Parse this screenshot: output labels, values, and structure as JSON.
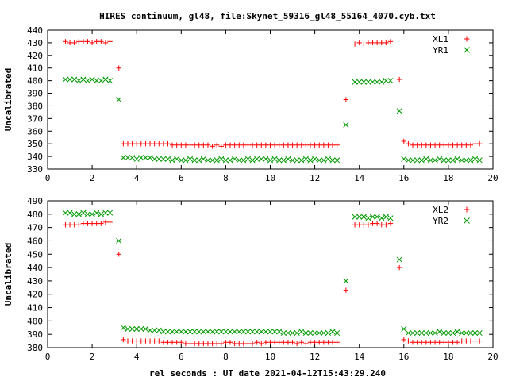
{
  "title": "HIRES continuum, gl48, file:Skynet_59316_gl48_55164_4070.cyb.txt",
  "xlabel": "rel seconds : UT date 2021-04-12T15:43:29.240",
  "colors": {
    "red": "#ff0000",
    "green": "#009900"
  },
  "chart_data": [
    {
      "type": "scatter",
      "ylabel": "Uncalibrated",
      "xlim": [
        0,
        20
      ],
      "ylim": [
        330,
        440
      ],
      "x_ticks": [
        0,
        2,
        4,
        6,
        8,
        10,
        12,
        14,
        16,
        18,
        20
      ],
      "y_ticks": [
        330,
        340,
        350,
        360,
        370,
        380,
        390,
        400,
        410,
        420,
        430,
        440
      ],
      "legend_position": "top-right",
      "series": [
        {
          "name": "XL1",
          "marker": "plus",
          "color": "#ff0000",
          "x": [
            0.8,
            1.0,
            1.2,
            1.4,
            1.6,
            1.8,
            2.0,
            2.2,
            2.4,
            2.6,
            2.8,
            3.2,
            3.4,
            3.6,
            3.8,
            4.0,
            4.2,
            4.4,
            4.6,
            4.8,
            5.0,
            5.2,
            5.4,
            5.6,
            5.8,
            6.0,
            6.2,
            6.4,
            6.6,
            6.8,
            7.0,
            7.2,
            7.4,
            7.6,
            7.8,
            8.0,
            8.2,
            8.4,
            8.6,
            8.8,
            9.0,
            9.2,
            9.4,
            9.6,
            9.8,
            10.0,
            10.2,
            10.4,
            10.6,
            10.8,
            11.0,
            11.2,
            11.4,
            11.6,
            11.8,
            12.0,
            12.2,
            12.4,
            12.6,
            12.8,
            13.0,
            13.4,
            13.8,
            14.0,
            14.2,
            14.4,
            14.6,
            14.8,
            15.0,
            15.2,
            15.4,
            15.8,
            16.0,
            16.2,
            16.4,
            16.6,
            16.8,
            17.0,
            17.2,
            17.4,
            17.6,
            17.8,
            18.0,
            18.2,
            18.4,
            18.6,
            18.8,
            19.0,
            19.2,
            19.4
          ],
          "y": [
            431,
            430,
            430,
            431,
            431,
            431,
            430,
            431,
            431,
            430,
            431,
            410,
            350,
            350,
            350,
            350,
            350,
            350,
            350,
            350,
            350,
            350,
            350,
            349,
            349,
            349,
            349,
            349,
            349,
            349,
            349,
            349,
            348,
            349,
            348,
            349,
            349,
            349,
            349,
            349,
            349,
            349,
            349,
            349,
            349,
            349,
            349,
            349,
            349,
            349,
            349,
            349,
            349,
            349,
            349,
            349,
            349,
            349,
            349,
            349,
            349,
            385,
            429,
            430,
            429,
            430,
            430,
            430,
            430,
            430,
            431,
            401,
            352,
            350,
            349,
            349,
            349,
            349,
            349,
            349,
            349,
            349,
            349,
            349,
            349,
            349,
            349,
            349,
            350,
            350
          ]
        },
        {
          "name": "YR1",
          "marker": "cross",
          "color": "#009900",
          "x": [
            0.8,
            1.0,
            1.2,
            1.4,
            1.6,
            1.8,
            2.0,
            2.2,
            2.4,
            2.6,
            2.8,
            3.2,
            3.4,
            3.6,
            3.8,
            4.0,
            4.2,
            4.4,
            4.6,
            4.8,
            5.0,
            5.2,
            5.4,
            5.6,
            5.8,
            6.0,
            6.2,
            6.4,
            6.6,
            6.8,
            7.0,
            7.2,
            7.4,
            7.6,
            7.8,
            8.0,
            8.2,
            8.4,
            8.6,
            8.8,
            9.0,
            9.2,
            9.4,
            9.6,
            9.8,
            10.0,
            10.2,
            10.4,
            10.6,
            10.8,
            11.0,
            11.2,
            11.4,
            11.6,
            11.8,
            12.0,
            12.2,
            12.4,
            12.6,
            12.8,
            13.0,
            13.4,
            13.8,
            14.0,
            14.2,
            14.4,
            14.6,
            14.8,
            15.0,
            15.2,
            15.4,
            15.8,
            16.0,
            16.2,
            16.4,
            16.6,
            16.8,
            17.0,
            17.2,
            17.4,
            17.6,
            17.8,
            18.0,
            18.2,
            18.4,
            18.6,
            18.8,
            19.0,
            19.2,
            19.4
          ],
          "y": [
            401,
            401,
            401,
            400,
            401,
            400,
            401,
            400,
            400,
            401,
            400,
            385,
            339,
            339,
            339,
            338,
            339,
            339,
            339,
            338,
            338,
            338,
            338,
            337,
            338,
            337,
            337,
            338,
            337,
            337,
            338,
            337,
            337,
            337,
            338,
            337,
            337,
            338,
            337,
            337,
            338,
            337,
            338,
            338,
            338,
            337,
            338,
            337,
            337,
            338,
            337,
            337,
            337,
            338,
            337,
            338,
            337,
            337,
            338,
            337,
            337,
            365,
            399,
            399,
            399,
            399,
            399,
            399,
            399,
            400,
            400,
            376,
            338,
            337,
            337,
            337,
            337,
            338,
            337,
            337,
            338,
            337,
            337,
            337,
            338,
            337,
            337,
            337,
            338,
            337
          ]
        }
      ]
    },
    {
      "type": "scatter",
      "ylabel": "Uncalibrated",
      "xlim": [
        0,
        20
      ],
      "ylim": [
        380,
        490
      ],
      "x_ticks": [
        0,
        2,
        4,
        6,
        8,
        10,
        12,
        14,
        16,
        18,
        20
      ],
      "y_ticks": [
        380,
        390,
        400,
        410,
        420,
        430,
        440,
        450,
        460,
        470,
        480,
        490
      ],
      "legend_position": "top-right",
      "series": [
        {
          "name": "XL2",
          "marker": "plus",
          "color": "#ff0000",
          "x": [
            0.8,
            1.0,
            1.2,
            1.4,
            1.6,
            1.8,
            2.0,
            2.2,
            2.4,
            2.6,
            2.8,
            3.2,
            3.4,
            3.6,
            3.8,
            4.0,
            4.2,
            4.4,
            4.6,
            4.8,
            5.0,
            5.2,
            5.4,
            5.6,
            5.8,
            6.0,
            6.2,
            6.4,
            6.6,
            6.8,
            7.0,
            7.2,
            7.4,
            7.6,
            7.8,
            8.0,
            8.2,
            8.4,
            8.6,
            8.8,
            9.0,
            9.2,
            9.4,
            9.6,
            9.8,
            10.0,
            10.2,
            10.4,
            10.6,
            10.8,
            11.0,
            11.2,
            11.4,
            11.6,
            11.8,
            12.0,
            12.2,
            12.4,
            12.6,
            12.8,
            13.0,
            13.4,
            13.8,
            14.0,
            14.2,
            14.4,
            14.6,
            14.8,
            15.0,
            15.2,
            15.4,
            15.8,
            16.0,
            16.2,
            16.4,
            16.6,
            16.8,
            17.0,
            17.2,
            17.4,
            17.6,
            17.8,
            18.0,
            18.2,
            18.4,
            18.6,
            18.8,
            19.0,
            19.2,
            19.4
          ],
          "y": [
            472,
            472,
            472,
            472,
            473,
            473,
            473,
            473,
            473,
            474,
            474,
            450,
            386,
            385,
            385,
            385,
            385,
            385,
            385,
            385,
            385,
            384,
            384,
            384,
            384,
            384,
            383,
            383,
            383,
            383,
            383,
            383,
            383,
            383,
            383,
            384,
            384,
            383,
            383,
            383,
            383,
            383,
            384,
            383,
            384,
            384,
            384,
            384,
            384,
            384,
            384,
            383,
            384,
            383,
            384,
            384,
            384,
            384,
            384,
            384,
            384,
            423,
            472,
            472,
            472,
            472,
            473,
            473,
            472,
            472,
            473,
            440,
            386,
            385,
            384,
            384,
            384,
            384,
            384,
            384,
            384,
            384,
            384,
            384,
            384,
            385,
            385,
            385,
            385,
            385
          ]
        },
        {
          "name": "YR2",
          "marker": "cross",
          "color": "#009900",
          "x": [
            0.8,
            1.0,
            1.2,
            1.4,
            1.6,
            1.8,
            2.0,
            2.2,
            2.4,
            2.6,
            2.8,
            3.2,
            3.4,
            3.6,
            3.8,
            4.0,
            4.2,
            4.4,
            4.6,
            4.8,
            5.0,
            5.2,
            5.4,
            5.6,
            5.8,
            6.0,
            6.2,
            6.4,
            6.6,
            6.8,
            7.0,
            7.2,
            7.4,
            7.6,
            7.8,
            8.0,
            8.2,
            8.4,
            8.6,
            8.8,
            9.0,
            9.2,
            9.4,
            9.6,
            9.8,
            10.0,
            10.2,
            10.4,
            10.6,
            10.8,
            11.0,
            11.2,
            11.4,
            11.6,
            11.8,
            12.0,
            12.2,
            12.4,
            12.6,
            12.8,
            13.0,
            13.4,
            13.8,
            14.0,
            14.2,
            14.4,
            14.6,
            14.8,
            15.0,
            15.2,
            15.4,
            15.8,
            16.0,
            16.2,
            16.4,
            16.6,
            16.8,
            17.0,
            17.2,
            17.4,
            17.6,
            17.8,
            18.0,
            18.2,
            18.4,
            18.6,
            18.8,
            19.0,
            19.2,
            19.4
          ],
          "y": [
            481,
            481,
            480,
            480,
            481,
            480,
            480,
            481,
            480,
            481,
            481,
            460,
            395,
            394,
            394,
            394,
            394,
            394,
            393,
            393,
            393,
            392,
            392,
            392,
            392,
            392,
            392,
            392,
            392,
            392,
            392,
            392,
            392,
            392,
            392,
            392,
            392,
            392,
            392,
            392,
            392,
            392,
            392,
            392,
            392,
            392,
            392,
            392,
            391,
            391,
            391,
            391,
            392,
            391,
            391,
            391,
            391,
            391,
            391,
            392,
            391,
            430,
            478,
            478,
            478,
            477,
            478,
            478,
            477,
            478,
            477,
            446,
            394,
            391,
            391,
            391,
            391,
            391,
            391,
            391,
            392,
            391,
            391,
            391,
            392,
            391,
            391,
            391,
            391,
            391
          ]
        }
      ]
    }
  ]
}
